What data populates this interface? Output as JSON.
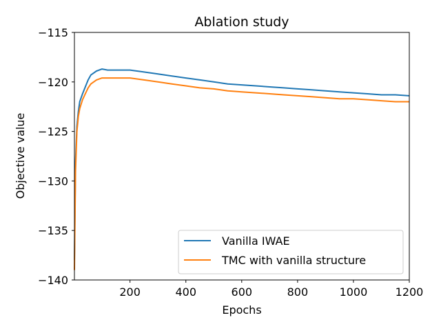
{
  "chart_data": {
    "type": "line",
    "title": "Ablation study",
    "xlabel": "Epochs",
    "ylabel": "Objective value",
    "xlim": [
      1,
      1200
    ],
    "ylim": [
      -140,
      -115
    ],
    "xticks": [
      200,
      400,
      600,
      800,
      1000,
      1200
    ],
    "yticks": [
      -115,
      -120,
      -125,
      -130,
      -135,
      -140
    ],
    "ytick_labels": [
      "−115",
      "−120",
      "−125",
      "−130",
      "−135",
      "−140"
    ],
    "grid": false,
    "legend_position": "lower-right",
    "series": [
      {
        "name": "Vanilla IWAE",
        "color": "#1f77b4",
        "x": [
          1,
          5,
          10,
          15,
          20,
          30,
          40,
          50,
          60,
          80,
          100,
          120,
          150,
          200,
          250,
          300,
          350,
          400,
          450,
          500,
          550,
          600,
          650,
          700,
          750,
          800,
          850,
          900,
          950,
          1000,
          1050,
          1100,
          1150,
          1200
        ],
        "values": [
          -138,
          -128,
          -124.5,
          -123,
          -122,
          -121.2,
          -120.5,
          -119.8,
          -119.3,
          -118.9,
          -118.7,
          -118.8,
          -118.8,
          -118.8,
          -119,
          -119.2,
          -119.4,
          -119.6,
          -119.8,
          -120,
          -120.2,
          -120.3,
          -120.4,
          -120.5,
          -120.6,
          -120.7,
          -120.8,
          -120.9,
          -121,
          -121.1,
          -121.2,
          -121.3,
          -121.3,
          -121.4
        ]
      },
      {
        "name": "TMC with vanilla structure",
        "color": "#ff7f0e",
        "x": [
          1,
          5,
          10,
          15,
          20,
          30,
          40,
          50,
          60,
          80,
          100,
          120,
          150,
          200,
          250,
          300,
          350,
          400,
          450,
          500,
          550,
          600,
          650,
          700,
          750,
          800,
          850,
          900,
          950,
          1000,
          1050,
          1100,
          1150,
          1200
        ],
        "values": [
          -139,
          -129,
          -125,
          -123.5,
          -122.7,
          -121.8,
          -121.2,
          -120.6,
          -120.2,
          -119.8,
          -119.6,
          -119.6,
          -119.6,
          -119.6,
          -119.8,
          -120,
          -120.2,
          -120.4,
          -120.6,
          -120.7,
          -120.9,
          -121,
          -121.1,
          -121.2,
          -121.3,
          -121.4,
          -121.5,
          -121.6,
          -121.7,
          -121.7,
          -121.8,
          -121.9,
          -122,
          -122
        ]
      }
    ]
  }
}
